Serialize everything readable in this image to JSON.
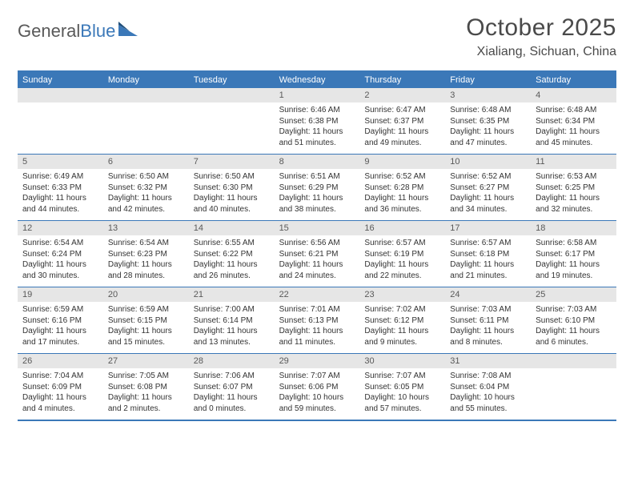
{
  "logo": {
    "text1": "General",
    "text2": "Blue"
  },
  "title": {
    "month": "October 2025",
    "location": "Xialiang, Sichuan, China"
  },
  "colors": {
    "brand_blue": "#3b78b8",
    "header_gray": "#e6e6e6",
    "text_gray": "#595959",
    "body_text": "#333333",
    "logo_gray": "#595959",
    "background": "#ffffff"
  },
  "typography": {
    "title_fontsize": 30,
    "location_fontsize": 16,
    "dayheader_fontsize": 11,
    "daynum_fontsize": 11,
    "body_fontsize": 10
  },
  "dayNames": [
    "Sunday",
    "Monday",
    "Tuesday",
    "Wednesday",
    "Thursday",
    "Friday",
    "Saturday"
  ],
  "layout": {
    "columns": 7,
    "weeks": 5,
    "cell_min_height": 82
  },
  "weeks": [
    [
      {
        "num": "",
        "sunrise": "",
        "sunset": "",
        "daylight1": "",
        "daylight2": ""
      },
      {
        "num": "",
        "sunrise": "",
        "sunset": "",
        "daylight1": "",
        "daylight2": ""
      },
      {
        "num": "",
        "sunrise": "",
        "sunset": "",
        "daylight1": "",
        "daylight2": ""
      },
      {
        "num": "1",
        "sunrise": "Sunrise: 6:46 AM",
        "sunset": "Sunset: 6:38 PM",
        "daylight1": "Daylight: 11 hours",
        "daylight2": "and 51 minutes."
      },
      {
        "num": "2",
        "sunrise": "Sunrise: 6:47 AM",
        "sunset": "Sunset: 6:37 PM",
        "daylight1": "Daylight: 11 hours",
        "daylight2": "and 49 minutes."
      },
      {
        "num": "3",
        "sunrise": "Sunrise: 6:48 AM",
        "sunset": "Sunset: 6:35 PM",
        "daylight1": "Daylight: 11 hours",
        "daylight2": "and 47 minutes."
      },
      {
        "num": "4",
        "sunrise": "Sunrise: 6:48 AM",
        "sunset": "Sunset: 6:34 PM",
        "daylight1": "Daylight: 11 hours",
        "daylight2": "and 45 minutes."
      }
    ],
    [
      {
        "num": "5",
        "sunrise": "Sunrise: 6:49 AM",
        "sunset": "Sunset: 6:33 PM",
        "daylight1": "Daylight: 11 hours",
        "daylight2": "and 44 minutes."
      },
      {
        "num": "6",
        "sunrise": "Sunrise: 6:50 AM",
        "sunset": "Sunset: 6:32 PM",
        "daylight1": "Daylight: 11 hours",
        "daylight2": "and 42 minutes."
      },
      {
        "num": "7",
        "sunrise": "Sunrise: 6:50 AM",
        "sunset": "Sunset: 6:30 PM",
        "daylight1": "Daylight: 11 hours",
        "daylight2": "and 40 minutes."
      },
      {
        "num": "8",
        "sunrise": "Sunrise: 6:51 AM",
        "sunset": "Sunset: 6:29 PM",
        "daylight1": "Daylight: 11 hours",
        "daylight2": "and 38 minutes."
      },
      {
        "num": "9",
        "sunrise": "Sunrise: 6:52 AM",
        "sunset": "Sunset: 6:28 PM",
        "daylight1": "Daylight: 11 hours",
        "daylight2": "and 36 minutes."
      },
      {
        "num": "10",
        "sunrise": "Sunrise: 6:52 AM",
        "sunset": "Sunset: 6:27 PM",
        "daylight1": "Daylight: 11 hours",
        "daylight2": "and 34 minutes."
      },
      {
        "num": "11",
        "sunrise": "Sunrise: 6:53 AM",
        "sunset": "Sunset: 6:25 PM",
        "daylight1": "Daylight: 11 hours",
        "daylight2": "and 32 minutes."
      }
    ],
    [
      {
        "num": "12",
        "sunrise": "Sunrise: 6:54 AM",
        "sunset": "Sunset: 6:24 PM",
        "daylight1": "Daylight: 11 hours",
        "daylight2": "and 30 minutes."
      },
      {
        "num": "13",
        "sunrise": "Sunrise: 6:54 AM",
        "sunset": "Sunset: 6:23 PM",
        "daylight1": "Daylight: 11 hours",
        "daylight2": "and 28 minutes."
      },
      {
        "num": "14",
        "sunrise": "Sunrise: 6:55 AM",
        "sunset": "Sunset: 6:22 PM",
        "daylight1": "Daylight: 11 hours",
        "daylight2": "and 26 minutes."
      },
      {
        "num": "15",
        "sunrise": "Sunrise: 6:56 AM",
        "sunset": "Sunset: 6:21 PM",
        "daylight1": "Daylight: 11 hours",
        "daylight2": "and 24 minutes."
      },
      {
        "num": "16",
        "sunrise": "Sunrise: 6:57 AM",
        "sunset": "Sunset: 6:19 PM",
        "daylight1": "Daylight: 11 hours",
        "daylight2": "and 22 minutes."
      },
      {
        "num": "17",
        "sunrise": "Sunrise: 6:57 AM",
        "sunset": "Sunset: 6:18 PM",
        "daylight1": "Daylight: 11 hours",
        "daylight2": "and 21 minutes."
      },
      {
        "num": "18",
        "sunrise": "Sunrise: 6:58 AM",
        "sunset": "Sunset: 6:17 PM",
        "daylight1": "Daylight: 11 hours",
        "daylight2": "and 19 minutes."
      }
    ],
    [
      {
        "num": "19",
        "sunrise": "Sunrise: 6:59 AM",
        "sunset": "Sunset: 6:16 PM",
        "daylight1": "Daylight: 11 hours",
        "daylight2": "and 17 minutes."
      },
      {
        "num": "20",
        "sunrise": "Sunrise: 6:59 AM",
        "sunset": "Sunset: 6:15 PM",
        "daylight1": "Daylight: 11 hours",
        "daylight2": "and 15 minutes."
      },
      {
        "num": "21",
        "sunrise": "Sunrise: 7:00 AM",
        "sunset": "Sunset: 6:14 PM",
        "daylight1": "Daylight: 11 hours",
        "daylight2": "and 13 minutes."
      },
      {
        "num": "22",
        "sunrise": "Sunrise: 7:01 AM",
        "sunset": "Sunset: 6:13 PM",
        "daylight1": "Daylight: 11 hours",
        "daylight2": "and 11 minutes."
      },
      {
        "num": "23",
        "sunrise": "Sunrise: 7:02 AM",
        "sunset": "Sunset: 6:12 PM",
        "daylight1": "Daylight: 11 hours",
        "daylight2": "and 9 minutes."
      },
      {
        "num": "24",
        "sunrise": "Sunrise: 7:03 AM",
        "sunset": "Sunset: 6:11 PM",
        "daylight1": "Daylight: 11 hours",
        "daylight2": "and 8 minutes."
      },
      {
        "num": "25",
        "sunrise": "Sunrise: 7:03 AM",
        "sunset": "Sunset: 6:10 PM",
        "daylight1": "Daylight: 11 hours",
        "daylight2": "and 6 minutes."
      }
    ],
    [
      {
        "num": "26",
        "sunrise": "Sunrise: 7:04 AM",
        "sunset": "Sunset: 6:09 PM",
        "daylight1": "Daylight: 11 hours",
        "daylight2": "and 4 minutes."
      },
      {
        "num": "27",
        "sunrise": "Sunrise: 7:05 AM",
        "sunset": "Sunset: 6:08 PM",
        "daylight1": "Daylight: 11 hours",
        "daylight2": "and 2 minutes."
      },
      {
        "num": "28",
        "sunrise": "Sunrise: 7:06 AM",
        "sunset": "Sunset: 6:07 PM",
        "daylight1": "Daylight: 11 hours",
        "daylight2": "and 0 minutes."
      },
      {
        "num": "29",
        "sunrise": "Sunrise: 7:07 AM",
        "sunset": "Sunset: 6:06 PM",
        "daylight1": "Daylight: 10 hours",
        "daylight2": "and 59 minutes."
      },
      {
        "num": "30",
        "sunrise": "Sunrise: 7:07 AM",
        "sunset": "Sunset: 6:05 PM",
        "daylight1": "Daylight: 10 hours",
        "daylight2": "and 57 minutes."
      },
      {
        "num": "31",
        "sunrise": "Sunrise: 7:08 AM",
        "sunset": "Sunset: 6:04 PM",
        "daylight1": "Daylight: 10 hours",
        "daylight2": "and 55 minutes."
      },
      {
        "num": "",
        "sunrise": "",
        "sunset": "",
        "daylight1": "",
        "daylight2": ""
      }
    ]
  ]
}
